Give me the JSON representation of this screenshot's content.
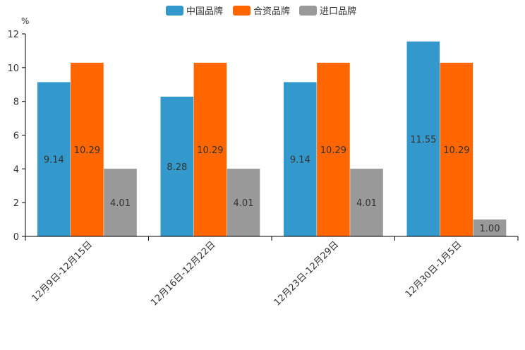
{
  "chart_data": {
    "type": "bar",
    "title": "",
    "xlabel": "",
    "ylabel": "%",
    "ylim": [
      0,
      12
    ],
    "yticks": [
      0,
      2,
      4,
      6,
      8,
      10,
      12
    ],
    "grid": false,
    "legend_position": "top-center",
    "categories": [
      "12月9日-12月15日",
      "12月16日-12月22日",
      "12月23日-12月29日",
      "12月30日-1月5日"
    ],
    "series": [
      {
        "name": "中国品牌",
        "color": "#3399CC",
        "values": [
          9.14,
          8.28,
          9.14,
          11.55
        ],
        "labels": [
          "9.14",
          "8.28",
          "9.14",
          "11.55"
        ]
      },
      {
        "name": "合资品牌",
        "color": "#FF6600",
        "values": [
          10.29,
          10.29,
          10.29,
          10.29
        ],
        "labels": [
          "10.29",
          "10.29",
          "10.29",
          "10.29"
        ]
      },
      {
        "name": "进口品牌",
        "color": "#999999",
        "values": [
          4.01,
          4.01,
          4.01,
          1.0
        ],
        "labels": [
          "4.01",
          "4.01",
          "4.01",
          "1.00"
        ]
      }
    ]
  }
}
